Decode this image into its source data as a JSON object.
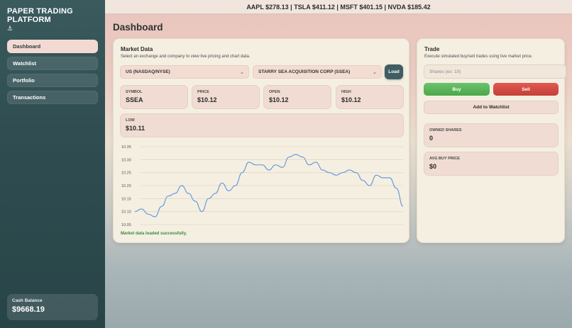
{
  "app": {
    "brand": "PAPER TRADING PLATFORM",
    "brand_icon": "⚓"
  },
  "sidebar": {
    "items": [
      {
        "label": "Dashboard",
        "active": true
      },
      {
        "label": "Watchlist",
        "active": false
      },
      {
        "label": "Portfolio",
        "active": false
      },
      {
        "label": "Transactions",
        "active": false
      }
    ],
    "cash_label": "Cash Balance",
    "cash_value": "$9668.19"
  },
  "ticker": {
    "text": "AAPL $278.13 | TSLA $411.12 | MSFT $401.15 | NVDA $185.42"
  },
  "page": {
    "title": "Dashboard"
  },
  "market": {
    "title": "Market Data",
    "subtitle": "Select an exchange and company to view live pricing and chart data.",
    "exchange_select": "US (NASDAQ/NYSE)",
    "company_select": "STARRY SEA ACQUISITION CORP (SSEA)",
    "load_label": "Load",
    "stats": [
      {
        "label": "SYMBOL",
        "value": "SSEA"
      },
      {
        "label": "PRICE",
        "value": "$10.12"
      },
      {
        "label": "OPEN",
        "value": "$10.12"
      },
      {
        "label": "HIGH",
        "value": "$10.12"
      },
      {
        "label": "LOW",
        "value": "$10.11"
      }
    ],
    "status": "Market data loaded successfully."
  },
  "trade": {
    "title": "Trade",
    "subtitle": "Execute simulated buy/sell trades using live market price.",
    "shares_placeholder": "Shares (ex: 10)",
    "buy_label": "Buy",
    "sell_label": "Sell",
    "watchlist_label": "Add to Watchlist",
    "owned_label": "OWNED SHARES",
    "owned_value": "0",
    "avg_label": "AVG BUY PRICE",
    "avg_value": "$0"
  },
  "colors": {
    "line": "#6b9ed8",
    "grid": "#e1d8c8",
    "sidebar": "#2f4d51",
    "buy": "#5bb55b",
    "sell": "#d34b43"
  },
  "chart_data": {
    "type": "line",
    "yticks": [
      "10.35",
      "10.30",
      "10.25",
      "10.20",
      "10.15",
      "10.10",
      "10.05"
    ],
    "ylim": [
      10.05,
      10.35
    ],
    "grid": true,
    "series": [
      {
        "values": [
          10.1,
          10.11,
          10.09,
          10.08,
          10.12,
          10.16,
          10.17,
          10.2,
          10.17,
          10.14,
          10.1,
          10.15,
          10.17,
          10.21,
          10.18,
          10.2,
          10.25,
          10.29,
          10.28,
          10.28,
          10.26,
          10.28,
          10.27,
          10.31,
          10.32,
          10.31,
          10.28,
          10.29,
          10.26,
          10.25,
          10.24,
          10.25,
          10.26,
          10.25,
          10.22,
          10.2,
          10.24,
          10.23,
          10.23,
          10.19,
          10.12
        ]
      }
    ]
  }
}
